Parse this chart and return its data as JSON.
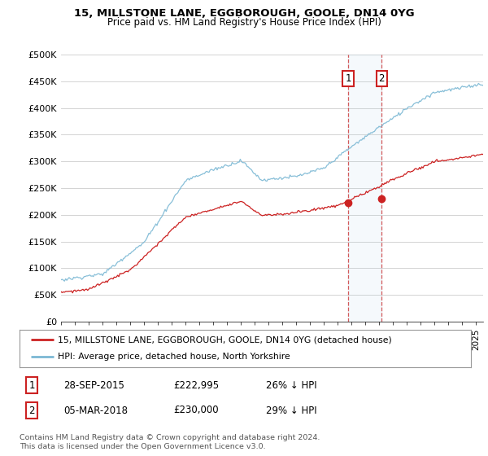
{
  "title": "15, MILLSTONE LANE, EGGBOROUGH, GOOLE, DN14 0YG",
  "subtitle": "Price paid vs. HM Land Registry's House Price Index (HPI)",
  "ylabel_ticks": [
    "£0",
    "£50K",
    "£100K",
    "£150K",
    "£200K",
    "£250K",
    "£300K",
    "£350K",
    "£400K",
    "£450K",
    "£500K"
  ],
  "ytick_values": [
    0,
    50000,
    100000,
    150000,
    200000,
    250000,
    300000,
    350000,
    400000,
    450000,
    500000
  ],
  "hpi_color": "#7bb8d4",
  "price_color": "#cc2222",
  "sale1_date": 2015.75,
  "sale1_price": 222995,
  "sale2_date": 2018.17,
  "sale2_price": 230000,
  "legend_label1": "15, MILLSTONE LANE, EGGBOROUGH, GOOLE, DN14 0YG (detached house)",
  "legend_label2": "HPI: Average price, detached house, North Yorkshire",
  "table_row1": [
    "1",
    "28-SEP-2015",
    "£222,995",
    "26% ↓ HPI"
  ],
  "table_row2": [
    "2",
    "05-MAR-2018",
    "£230,000",
    "29% ↓ HPI"
  ],
  "footnote": "Contains HM Land Registry data © Crown copyright and database right 2024.\nThis data is licensed under the Open Government Licence v3.0.",
  "background_color": "#ffffff",
  "grid_color": "#cccccc",
  "xlim_left": 1995,
  "xlim_right": 2025.5,
  "ylim_bottom": 0,
  "ylim_top": 500000
}
